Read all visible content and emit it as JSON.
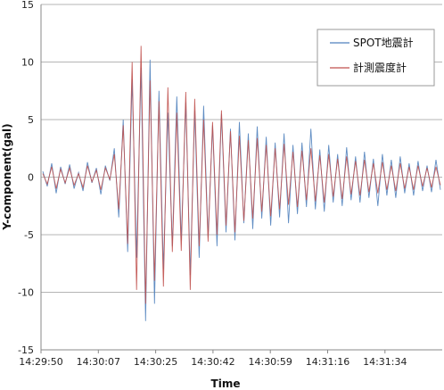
{
  "chart_data": {
    "type": "line",
    "xlabel": "Time",
    "ylabel": "Y-component(gal)",
    "ylim": [
      -15,
      15
    ],
    "y_ticks": [
      "15",
      "10",
      "5",
      "0",
      "-5",
      "-10",
      "-15"
    ],
    "x_ticks": [
      "14:29:50",
      "14:30:07",
      "14:30:25",
      "14:30:42",
      "14:30:59",
      "14:31:16",
      "14:31:34"
    ],
    "grid": "horizontal",
    "legend_position": "top-right",
    "series": [
      {
        "name": "SPOT地震計",
        "color": "#4f81bd",
        "values": [
          0.5,
          -0.8,
          1.2,
          -1.4,
          0.9,
          -0.6,
          1.1,
          -1.0,
          0.4,
          -1.2,
          1.3,
          -0.5,
          0.8,
          -1.5,
          1.0,
          -0.3,
          2.5,
          -3.5,
          5.0,
          -6.5,
          8.5,
          -7.0,
          9.5,
          -12.5,
          10.2,
          -11.0,
          7.5,
          -8.0,
          5.6,
          -6.0,
          7.0,
          -5.5,
          6.5,
          -8.5,
          5.8,
          -7.0,
          6.2,
          -5.2,
          4.5,
          -6.0,
          5.5,
          -4.8,
          4.2,
          -5.5,
          4.8,
          -4.0,
          3.8,
          -4.5,
          4.4,
          -3.6,
          3.5,
          -4.2,
          3.0,
          -3.5,
          3.8,
          -4.0,
          2.8,
          -3.2,
          3.0,
          -2.6,
          4.2,
          -2.8,
          2.4,
          -3.0,
          2.8,
          -2.2,
          2.0,
          -2.5,
          2.6,
          -2.0,
          1.8,
          -2.2,
          2.2,
          -1.8,
          1.6,
          -2.5,
          2.0,
          -1.6,
          1.5,
          -1.8,
          1.8,
          -1.4,
          1.2,
          -1.6,
          1.4,
          -1.2,
          1.0,
          -1.3,
          1.5,
          -1.1
        ]
      },
      {
        "name": "計測震度計",
        "color": "#c0504d",
        "values": [
          0.3,
          -0.6,
          0.9,
          -1.0,
          0.7,
          -0.5,
          0.8,
          -0.7,
          0.3,
          -0.9,
          1.0,
          -0.4,
          0.6,
          -1.1,
          0.8,
          -0.2,
          2.0,
          -2.8,
          4.5,
          -5.8,
          10.0,
          -9.8,
          11.4,
          -11.0,
          8.4,
          -9.0,
          6.6,
          -9.5,
          7.8,
          -6.5,
          5.6,
          -6.4,
          7.4,
          -9.8,
          6.8,
          -6.0,
          5.0,
          -5.6,
          4.8,
          -5.0,
          5.8,
          -4.2,
          4.0,
          -4.8,
          3.6,
          -3.8,
          3.2,
          -3.6,
          3.4,
          -3.0,
          2.8,
          -3.4,
          2.5,
          -2.8,
          2.9,
          -2.4,
          2.2,
          -2.6,
          2.3,
          -2.0,
          2.5,
          -2.1,
          1.9,
          -2.2,
          2.0,
          -1.7,
          1.6,
          -1.9,
          1.8,
          -1.5,
          1.4,
          -1.6,
          1.5,
          -1.3,
          1.2,
          -1.4,
          1.3,
          -1.1,
          1.0,
          -1.2,
          1.2,
          -1.0,
          0.9,
          -1.1,
          1.0,
          -0.8,
          0.8,
          -0.9,
          0.9,
          -0.7
        ]
      }
    ]
  }
}
